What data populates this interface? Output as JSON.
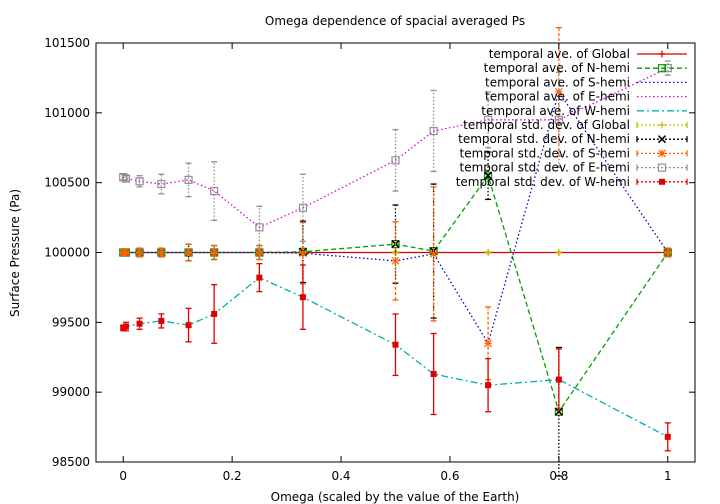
{
  "chart_data": {
    "type": "line",
    "title": "Omega dependence of spacial averaged Ps",
    "xlabel": "Omega (scaled by the value of the Earth)",
    "ylabel": "Surface Pressure (Pa)",
    "xlim": [
      -0.05,
      1.05
    ],
    "ylim": [
      98500,
      101500
    ],
    "xticks": [
      0,
      0.2,
      0.4,
      0.6,
      0.8,
      1
    ],
    "xtick_labels": [
      "0",
      "0.2",
      "0.4",
      "0.6",
      "0.8",
      "1"
    ],
    "yticks": [
      98500,
      99000,
      99500,
      100000,
      100500,
      101000,
      101500
    ],
    "ytick_labels": [
      "98500",
      "99000",
      "99500",
      "100000",
      "100500",
      "101000",
      "101500"
    ],
    "grid": false,
    "legend_position": "top-right",
    "x": [
      0,
      0.005,
      0.03,
      0.07,
      0.12,
      0.167,
      0.25,
      0.33,
      0.5,
      0.57,
      0.67,
      0.8,
      1
    ],
    "series": [
      {
        "name": "temporal ave. of Global",
        "style": "solid",
        "color": "#d40000",
        "marker": "plus",
        "values": [
          100000,
          100000,
          100000,
          100000,
          100000,
          100000,
          100000,
          100000,
          100000,
          100000,
          100000,
          100000,
          100000
        ]
      },
      {
        "name": "temporal ave. of N-hemi",
        "style": "dashed",
        "color": "#00a000",
        "marker": "square",
        "values": [
          100000,
          100000,
          100000,
          100000,
          100000,
          100000,
          100000,
          100005,
          100060,
          100010,
          100550,
          98860,
          100000
        ]
      },
      {
        "name": "temporal ave. of S-hemi",
        "style": "dotted",
        "color": "#0000d0",
        "marker": "none",
        "values": [
          100000,
          100000,
          100000,
          100000,
          100000,
          100000,
          100000,
          99995,
          99940,
          99990,
          99350,
          101150,
          100000
        ]
      },
      {
        "name": "temporal ave. of E-hemi",
        "style": "dotted",
        "color": "#e000e0",
        "marker": "none",
        "values": [
          100540,
          100530,
          100510,
          100490,
          100520,
          100440,
          100180,
          100320,
          100660,
          100870,
          100950,
          100950,
          101320
        ]
      },
      {
        "name": "temporal ave. of W-hemi",
        "style": "dashdot",
        "color": "#00b0b0",
        "marker": "none",
        "values": [
          99460,
          99470,
          99490,
          99510,
          99480,
          99560,
          99820,
          99680,
          99340,
          99130,
          99050,
          99090,
          98680
        ]
      },
      {
        "name": "temporal std. dev. of Global",
        "style": "errorbars",
        "color": "#c0c000",
        "marker": "plus",
        "values": [
          100000,
          100000,
          100000,
          100000,
          100000,
          100000,
          100000,
          100000,
          100000,
          100000,
          100000,
          100000,
          100000
        ],
        "errors": [
          5,
          5,
          5,
          5,
          5,
          5,
          5,
          5,
          5,
          5,
          5,
          5,
          5
        ]
      },
      {
        "name": "temporal std. dev. of N-hemi",
        "style": "errorbars",
        "color": "#000000",
        "marker": "cross",
        "values": [
          100000,
          100000,
          100000,
          100000,
          100000,
          100000,
          100000,
          100005,
          100060,
          100010,
          100550,
          98860,
          100000
        ],
        "errors": [
          20,
          20,
          30,
          30,
          60,
          50,
          50,
          220,
          280,
          480,
          170,
          460,
          30
        ]
      },
      {
        "name": "temporal std. dev. of S-hemi",
        "style": "errorbars",
        "color": "#ff6000",
        "marker": "star",
        "values": [
          100000,
          100000,
          100000,
          100000,
          100000,
          100000,
          100000,
          99995,
          99940,
          99990,
          99350,
          101150,
          100000
        ],
        "errors": [
          20,
          20,
          30,
          30,
          60,
          50,
          50,
          220,
          280,
          480,
          260,
          460,
          30
        ]
      },
      {
        "name": "temporal std. dev. of E-hemi",
        "style": "errorbars",
        "color": "#909090",
        "marker": "square",
        "values": [
          100540,
          100530,
          100510,
          100490,
          100520,
          100440,
          100180,
          100320,
          100660,
          100870,
          100950,
          100950,
          101320
        ],
        "errors": [
          20,
          20,
          40,
          70,
          120,
          210,
          150,
          240,
          220,
          290,
          200,
          340,
          50
        ]
      },
      {
        "name": "temporal std. dev. of W-hemi",
        "style": "errorbars",
        "color": "#e00000",
        "marker": "filled-square",
        "values": [
          99460,
          99470,
          99490,
          99510,
          99480,
          99560,
          99820,
          99680,
          99340,
          99130,
          99050,
          99090,
          98680
        ],
        "errors": [
          20,
          30,
          40,
          50,
          120,
          210,
          100,
          230,
          220,
          290,
          190,
          220,
          100
        ]
      }
    ]
  }
}
